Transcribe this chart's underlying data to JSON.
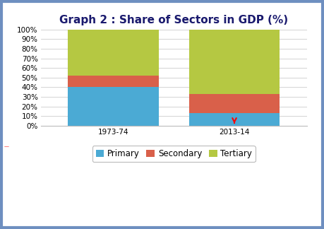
{
  "title": "Graph 2 : Share of Sectors in GDP (%)",
  "categories": [
    "1973-74",
    "2013-14"
  ],
  "primary": [
    40,
    13
  ],
  "secondary": [
    12,
    20
  ],
  "tertiary": [
    48,
    67
  ],
  "primary_color": "#4baad4",
  "secondary_color": "#d9604a",
  "tertiary_color": "#b5c842",
  "ylim": [
    0,
    100
  ],
  "yticks": [
    0,
    10,
    20,
    30,
    40,
    50,
    60,
    70,
    80,
    90,
    100
  ],
  "ytick_labels": [
    "0%",
    "10%",
    "20%",
    "30%",
    "40%",
    "50%",
    "60%",
    "70%",
    "80%",
    "90%",
    "100%"
  ],
  "legend_labels": [
    "Primary",
    "Secondary",
    "Tertiary"
  ],
  "bar_width": 0.75,
  "background_color": "#ffffff",
  "border_color": "#6e8fc0",
  "title_color": "#1a1a6e",
  "title_fontsize": 11,
  "tick_fontsize": 7.5,
  "legend_fontsize": 8.5,
  "grid_color": "#cccccc",
  "x_positions": [
    0,
    1
  ],
  "fig_width": 4.59,
  "fig_height": 3.24,
  "dpi": 100
}
